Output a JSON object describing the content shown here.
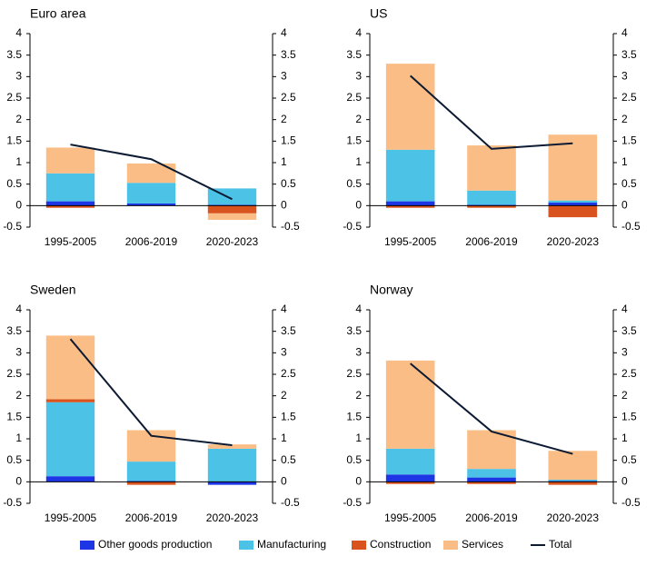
{
  "chart_data": [
    {
      "type": "bar",
      "stacked": true,
      "title": "Euro area",
      "categories": [
        "1995-2005",
        "2006-2019",
        "2020-2023"
      ],
      "ylim": [
        -0.5,
        4
      ],
      "yticks": [
        -0.5,
        0,
        0.5,
        1,
        1.5,
        2,
        2.5,
        3,
        3.5,
        4
      ],
      "y2lim": [
        -0.5,
        4
      ],
      "y2ticks": [
        -0.5,
        0,
        0.5,
        1,
        1.5,
        2,
        2.5,
        3,
        3.5,
        4
      ],
      "series": [
        {
          "name": "Other goods production",
          "color": "#1e35e6",
          "values": [
            0.1,
            0.05,
            0.02
          ]
        },
        {
          "name": "Manufacturing",
          "color": "#4cc3e6",
          "values": [
            0.65,
            0.48,
            0.38
          ]
        },
        {
          "name": "Construction",
          "color": "#d9531e",
          "values": [
            -0.05,
            0,
            -0.18
          ]
        },
        {
          "name": "Services",
          "color": "#f9bd85",
          "values": [
            0.6,
            0.45,
            -0.15
          ]
        },
        {
          "name": "Total",
          "color": "#0c1b33",
          "type": "line",
          "values": [
            1.42,
            1.08,
            0.15
          ]
        }
      ]
    },
    {
      "type": "bar",
      "stacked": true,
      "title": "US",
      "categories": [
        "1995-2005",
        "2006-2019",
        "2020-2023"
      ],
      "ylim": [
        -0.5,
        4
      ],
      "yticks": [
        -0.5,
        0,
        0.5,
        1,
        1.5,
        2,
        2.5,
        3,
        3.5,
        4
      ],
      "y2lim": [
        -0.5,
        4
      ],
      "y2ticks": [
        -0.5,
        0,
        0.5,
        1,
        1.5,
        2,
        2.5,
        3,
        3.5,
        4
      ],
      "series": [
        {
          "name": "Other goods production",
          "color": "#1e35e6",
          "values": [
            0.1,
            0.02,
            0.07
          ]
        },
        {
          "name": "Manufacturing",
          "color": "#4cc3e6",
          "values": [
            1.2,
            0.33,
            0.05
          ]
        },
        {
          "name": "Construction",
          "color": "#d9531e",
          "values": [
            -0.05,
            -0.05,
            -0.27
          ]
        },
        {
          "name": "Services",
          "color": "#f9bd85",
          "values": [
            2.0,
            1.05,
            1.53
          ]
        },
        {
          "name": "Total",
          "color": "#0c1b33",
          "type": "line",
          "values": [
            3.02,
            1.32,
            1.45
          ]
        }
      ]
    },
    {
      "type": "bar",
      "stacked": true,
      "title": "Sweden",
      "categories": [
        "1995-2005",
        "2006-2019",
        "2020-2023"
      ],
      "ylim": [
        -0.5,
        4
      ],
      "yticks": [
        -0.5,
        0,
        0.5,
        1,
        1.5,
        2,
        2.5,
        3,
        3.5,
        4
      ],
      "y2lim": [
        -0.5,
        4
      ],
      "y2ticks": [
        -0.5,
        0,
        0.5,
        1,
        1.5,
        2,
        2.5,
        3,
        3.5,
        4
      ],
      "series": [
        {
          "name": "Other goods production",
          "color": "#1e35e6",
          "values": [
            0.13,
            0.02,
            -0.07
          ]
        },
        {
          "name": "Manufacturing",
          "color": "#4cc3e6",
          "values": [
            1.72,
            0.45,
            0.77
          ]
        },
        {
          "name": "Construction",
          "color": "#d9531e",
          "values": [
            0.07,
            -0.07,
            0
          ]
        },
        {
          "name": "Services",
          "color": "#f9bd85",
          "values": [
            1.48,
            0.73,
            0.1
          ]
        },
        {
          "name": "Total",
          "color": "#0c1b33",
          "type": "line",
          "values": [
            3.32,
            1.07,
            0.85
          ]
        }
      ]
    },
    {
      "type": "bar",
      "stacked": true,
      "title": "Norway",
      "categories": [
        "1995-2005",
        "2006-2019",
        "2020-2023"
      ],
      "ylim": [
        -0.5,
        4
      ],
      "yticks": [
        -0.5,
        0,
        0.5,
        1,
        1.5,
        2,
        2.5,
        3,
        3.5,
        4
      ],
      "y2lim": [
        -0.5,
        4
      ],
      "y2ticks": [
        -0.5,
        0,
        0.5,
        1,
        1.5,
        2,
        2.5,
        3,
        3.5,
        4
      ],
      "series": [
        {
          "name": "Other goods production",
          "color": "#1e35e6",
          "values": [
            0.17,
            0.1,
            0.02
          ]
        },
        {
          "name": "Manufacturing",
          "color": "#4cc3e6",
          "values": [
            0.6,
            0.2,
            0.03
          ]
        },
        {
          "name": "Construction",
          "color": "#d9531e",
          "values": [
            -0.05,
            -0.05,
            -0.07
          ]
        },
        {
          "name": "Services",
          "color": "#f9bd85",
          "values": [
            2.05,
            0.9,
            0.67
          ]
        },
        {
          "name": "Total",
          "color": "#0c1b33",
          "type": "line",
          "values": [
            2.75,
            1.17,
            0.65
          ]
        }
      ]
    }
  ]
}
